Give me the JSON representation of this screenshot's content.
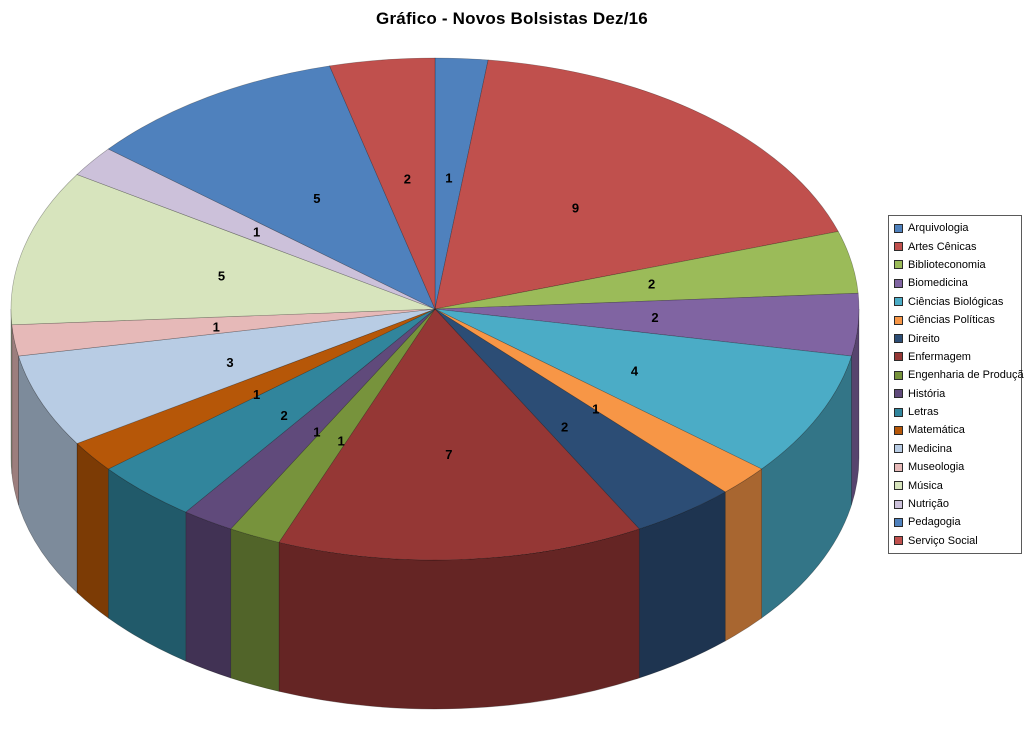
{
  "chart_data": {
    "type": "pie",
    "style": "3d-pie",
    "title": "Gráfico - Novos Bolsistas Dez/16",
    "categories": [
      "Arquivologia",
      "Artes Cênicas",
      "Biblioteconomia",
      "Biomedicina",
      "Ciências Biológicas",
      "Ciências Políticas",
      "Direito",
      "Enfermagem",
      "Engenharia de Produção",
      "História",
      "Letras",
      "Matemática",
      "Medicina",
      "Museologia",
      "Música",
      "Nutrição",
      "Pedagogia",
      "Serviço Social"
    ],
    "values": [
      1,
      9,
      2,
      2,
      4,
      1,
      2,
      7,
      1,
      1,
      2,
      1,
      3,
      1,
      5,
      1,
      5,
      2
    ],
    "total": 50,
    "colors": [
      "#4F81BD",
      "#C0504D",
      "#9BBB59",
      "#8064A2",
      "#4BACC6",
      "#F79646",
      "#2C4D75",
      "#953735",
      "#77933C",
      "#604A7B",
      "#31859C",
      "#B65708",
      "#B8CCE4",
      "#E6B9B8",
      "#D7E4BD",
      "#CCC1DA",
      "#4F81BD",
      "#C0504D"
    ],
    "start_angle_deg": 0,
    "direction": "clockwise",
    "show_values_as_labels": true,
    "legend_position": "right",
    "background": "#FFFFFF"
  }
}
